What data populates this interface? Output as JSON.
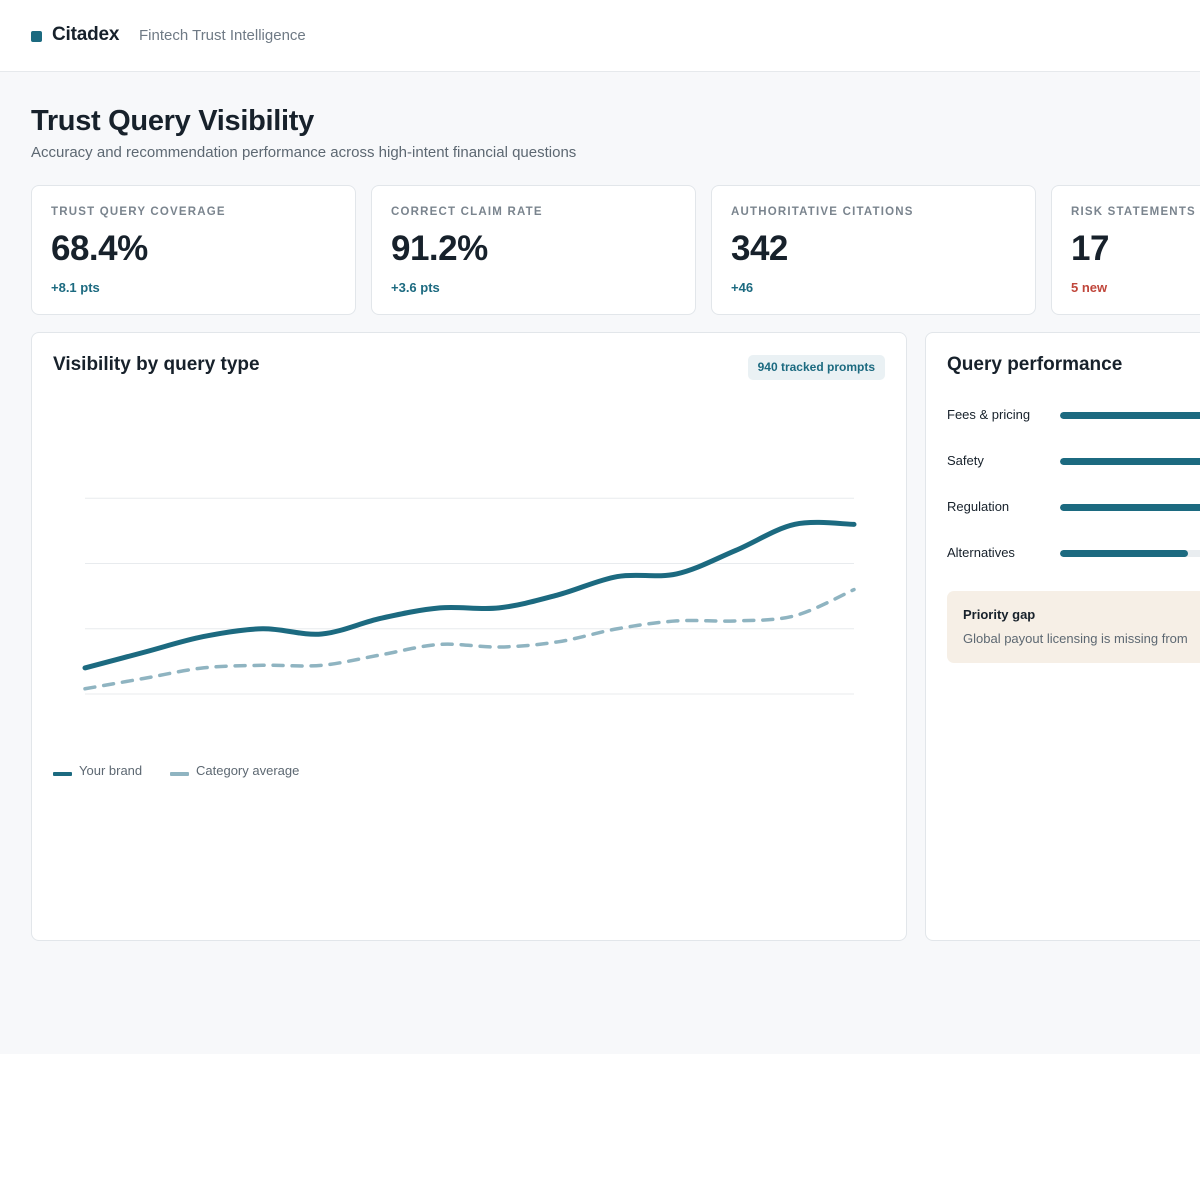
{
  "app": {
    "name": "Citadex",
    "tagline": "Fintech Trust Intelligence",
    "accent_color": "#1c6a80"
  },
  "header": {
    "title": "Trust Query Visibility",
    "subtitle": "Accuracy and recommendation performance across high-intent financial questions"
  },
  "kpis": [
    {
      "label": "TRUST QUERY COVERAGE",
      "value": "68.4%",
      "delta": "+8.1 pts",
      "delta_tone": "positive"
    },
    {
      "label": "CORRECT CLAIM RATE",
      "value": "91.2%",
      "delta": "+3.6 pts",
      "delta_tone": "positive"
    },
    {
      "label": "AUTHORITATIVE CITATIONS",
      "value": "342",
      "delta": "+46",
      "delta_tone": "positive"
    },
    {
      "label": "RISK STATEMENTS",
      "value": "17",
      "delta": "5 new",
      "delta_tone": "negative"
    }
  ],
  "visibility_panel": {
    "title": "Visibility by query type",
    "badge": "940 tracked prompts",
    "legend": [
      {
        "label": "Your brand",
        "color": "#1c6a80",
        "style": "solid"
      },
      {
        "label": "Category average",
        "color": "#8fb4c1",
        "style": "dashed"
      }
    ]
  },
  "chart_data": {
    "type": "line",
    "title": "",
    "xlabel": "",
    "ylabel": "",
    "ylim": [
      0,
      100
    ],
    "grid": true,
    "gridlines": [
      0,
      25,
      50,
      75
    ],
    "x": [
      0,
      1,
      2,
      3,
      4,
      5,
      6,
      7,
      8,
      9,
      10,
      11,
      12,
      13
    ],
    "series": [
      {
        "name": "Your brand",
        "values": [
          10,
          16,
          22,
          25,
          23,
          29,
          33,
          33,
          38,
          45,
          46,
          55,
          65,
          65
        ]
      },
      {
        "name": "Category average",
        "values": [
          2,
          6,
          10,
          11,
          11,
          15,
          19,
          18,
          20,
          25,
          28,
          28,
          30,
          40
        ]
      }
    ]
  },
  "performance_panel": {
    "title": "Query performance",
    "rows": [
      {
        "label": "Fees & pricing",
        "value": 0.92
      },
      {
        "label": "Safety",
        "value": 0.88
      },
      {
        "label": "Regulation",
        "value": 0.82
      },
      {
        "label": "Alternatives",
        "value": 0.64
      }
    ],
    "gap": {
      "title": "Priority gap",
      "text": "Global payout licensing is missing from"
    }
  }
}
